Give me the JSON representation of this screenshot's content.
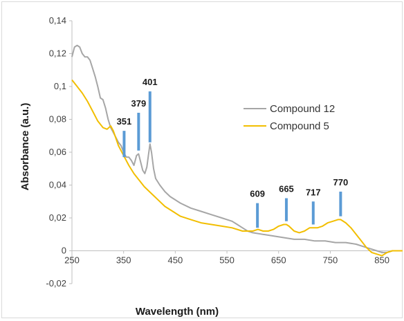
{
  "chart_data": {
    "type": "line",
    "title": "",
    "xlabel": "Wavelength (nm)",
    "ylabel": "Absorbance (a.u.)",
    "xlim": [
      250,
      890
    ],
    "ylim": [
      -0.02,
      0.14
    ],
    "x_ticks": [
      "250",
      "350",
      "450",
      "550",
      "650",
      "750",
      "850"
    ],
    "y_ticks": [
      "-0,02",
      "0",
      "0,02",
      "0,04",
      "0,06",
      "0,08",
      "0,1",
      "0,12",
      "0,14"
    ],
    "grid": false,
    "legend_position": "top-right",
    "series": [
      {
        "name": "Compound 12",
        "color": "#a6a6a6",
        "points": [
          [
            250,
            0.118
          ],
          [
            255,
            0.124
          ],
          [
            260,
            0.125
          ],
          [
            265,
            0.124
          ],
          [
            270,
            0.12
          ],
          [
            275,
            0.118
          ],
          [
            280,
            0.118
          ],
          [
            285,
            0.116
          ],
          [
            290,
            0.111
          ],
          [
            295,
            0.106
          ],
          [
            300,
            0.1
          ],
          [
            305,
            0.093
          ],
          [
            310,
            0.092
          ],
          [
            315,
            0.087
          ],
          [
            320,
            0.08
          ],
          [
            325,
            0.075
          ],
          [
            330,
            0.072
          ],
          [
            340,
            0.066
          ],
          [
            345,
            0.064
          ],
          [
            350,
            0.06
          ],
          [
            355,
            0.057
          ],
          [
            360,
            0.057
          ],
          [
            365,
            0.055
          ],
          [
            370,
            0.052
          ],
          [
            375,
            0.058
          ],
          [
            379,
            0.059
          ],
          [
            383,
            0.054
          ],
          [
            387,
            0.049
          ],
          [
            391,
            0.047
          ],
          [
            395,
            0.051
          ],
          [
            398,
            0.058
          ],
          [
            401,
            0.065
          ],
          [
            404,
            0.06
          ],
          [
            408,
            0.05
          ],
          [
            412,
            0.044
          ],
          [
            420,
            0.04
          ],
          [
            430,
            0.036
          ],
          [
            440,
            0.033
          ],
          [
            450,
            0.031
          ],
          [
            460,
            0.029
          ],
          [
            480,
            0.026
          ],
          [
            500,
            0.024
          ],
          [
            520,
            0.022
          ],
          [
            540,
            0.02
          ],
          [
            550,
            0.019
          ],
          [
            560,
            0.018
          ],
          [
            570,
            0.016
          ],
          [
            580,
            0.014
          ],
          [
            590,
            0.012
          ],
          [
            600,
            0.011
          ],
          [
            620,
            0.01
          ],
          [
            640,
            0.009
          ],
          [
            660,
            0.008
          ],
          [
            680,
            0.007
          ],
          [
            700,
            0.007
          ],
          [
            720,
            0.006
          ],
          [
            740,
            0.006
          ],
          [
            760,
            0.005
          ],
          [
            780,
            0.005
          ],
          [
            800,
            0.004
          ],
          [
            820,
            0.002
          ],
          [
            840,
            0.0
          ],
          [
            850,
            -0.001
          ],
          [
            860,
            -0.001
          ],
          [
            870,
            0.0
          ],
          [
            880,
            0.0
          ],
          [
            890,
            0.0
          ]
        ]
      },
      {
        "name": "Compound 5",
        "color": "#f2be00",
        "points": [
          [
            250,
            0.104
          ],
          [
            260,
            0.1
          ],
          [
            270,
            0.096
          ],
          [
            280,
            0.091
          ],
          [
            290,
            0.085
          ],
          [
            300,
            0.079
          ],
          [
            310,
            0.075
          ],
          [
            318,
            0.074
          ],
          [
            325,
            0.076
          ],
          [
            330,
            0.073
          ],
          [
            340,
            0.064
          ],
          [
            350,
            0.058
          ],
          [
            360,
            0.052
          ],
          [
            370,
            0.047
          ],
          [
            380,
            0.043
          ],
          [
            390,
            0.039
          ],
          [
            400,
            0.036
          ],
          [
            410,
            0.033
          ],
          [
            420,
            0.03
          ],
          [
            430,
            0.027
          ],
          [
            440,
            0.025
          ],
          [
            450,
            0.023
          ],
          [
            460,
            0.021
          ],
          [
            480,
            0.019
          ],
          [
            500,
            0.017
          ],
          [
            520,
            0.016
          ],
          [
            540,
            0.015
          ],
          [
            560,
            0.014
          ],
          [
            580,
            0.012
          ],
          [
            600,
            0.012
          ],
          [
            610,
            0.013
          ],
          [
            620,
            0.012
          ],
          [
            630,
            0.012
          ],
          [
            640,
            0.013
          ],
          [
            650,
            0.015
          ],
          [
            660,
            0.016
          ],
          [
            665,
            0.016
          ],
          [
            670,
            0.015
          ],
          [
            680,
            0.012
          ],
          [
            690,
            0.011
          ],
          [
            700,
            0.012
          ],
          [
            710,
            0.014
          ],
          [
            717,
            0.014
          ],
          [
            725,
            0.014
          ],
          [
            735,
            0.015
          ],
          [
            745,
            0.017
          ],
          [
            755,
            0.018
          ],
          [
            765,
            0.019
          ],
          [
            770,
            0.019
          ],
          [
            780,
            0.017
          ],
          [
            790,
            0.014
          ],
          [
            800,
            0.01
          ],
          [
            810,
            0.006
          ],
          [
            820,
            0.002
          ],
          [
            830,
            -0.001
          ],
          [
            840,
            -0.002
          ],
          [
            850,
            -0.003
          ],
          [
            860,
            -0.001
          ],
          [
            870,
            0.0
          ],
          [
            880,
            0.0
          ],
          [
            890,
            0.0
          ]
        ]
      }
    ],
    "markers": [
      {
        "x": 351,
        "label": "351",
        "y_bottom": 0.057,
        "y_top": 0.073
      },
      {
        "x": 379,
        "label": "379",
        "y_bottom": 0.061,
        "y_top": 0.084
      },
      {
        "x": 401,
        "label": "401",
        "y_bottom": 0.066,
        "y_top": 0.097
      },
      {
        "x": 609,
        "label": "609",
        "y_bottom": 0.014,
        "y_top": 0.029
      },
      {
        "x": 665,
        "label": "665",
        "y_bottom": 0.018,
        "y_top": 0.032
      },
      {
        "x": 717,
        "label": "717",
        "y_bottom": 0.016,
        "y_top": 0.03
      },
      {
        "x": 770,
        "label": "770",
        "y_bottom": 0.021,
        "y_top": 0.036
      }
    ],
    "marker_color": "#5b9bd5"
  }
}
